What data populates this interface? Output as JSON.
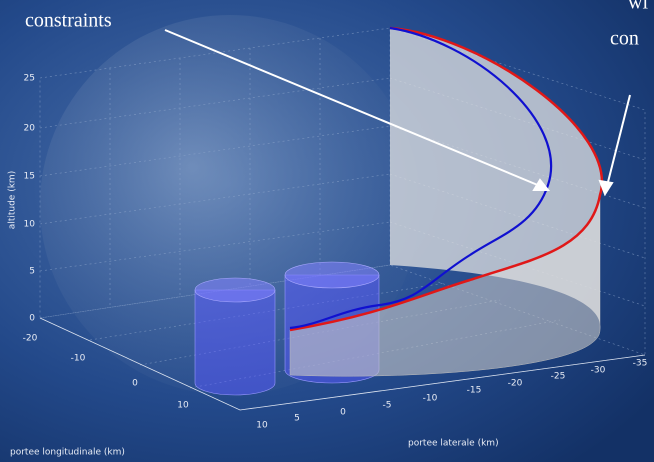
{
  "annotations": {
    "left": "constraints",
    "right_top": "wi",
    "right_bottom": "con"
  },
  "axes": {
    "z_label": "altitude (km)",
    "y_label": "portee longitudinale (km)",
    "x_label": "portee laterale (km)",
    "z_ticks": [
      "0",
      "5",
      "10",
      "15",
      "20",
      "25"
    ],
    "y_ticks": [
      "-20",
      "-10",
      "0",
      "10"
    ],
    "x_ticks": [
      "10",
      "5",
      "0",
      "-5",
      "-10",
      "-15",
      "-20",
      "-25",
      "-30",
      "-35"
    ]
  }
}
